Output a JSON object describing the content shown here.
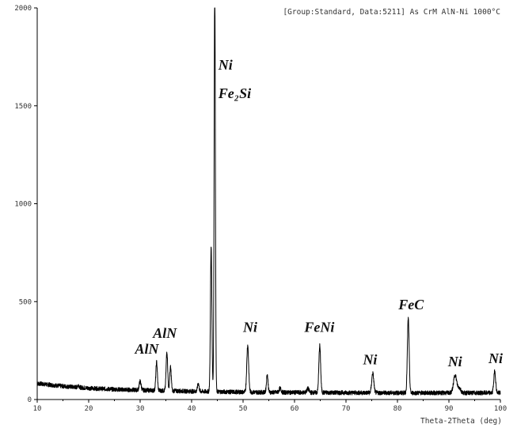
{
  "chart_data": {
    "type": "line",
    "header": "[Group:Standard, Data:5211] As CrM AlN-Ni 1000°C",
    "xlabel": "Theta-2Theta (deg)",
    "ylabel": "",
    "xlim": [
      10,
      100
    ],
    "ylim": [
      0,
      2000
    ],
    "xticks": [
      "10",
      "20",
      "30",
      "40",
      "50",
      "60",
      "70",
      "80",
      "90",
      "100"
    ],
    "yticks": [
      "0",
      "500",
      "1000",
      "1500",
      "2000"
    ],
    "grid": false,
    "legend": "none",
    "baseline": [
      {
        "x": 10,
        "y": 82
      },
      {
        "x": 15,
        "y": 68
      },
      {
        "x": 20,
        "y": 58
      },
      {
        "x": 25,
        "y": 52
      },
      {
        "x": 30,
        "y": 48
      },
      {
        "x": 35,
        "y": 45
      },
      {
        "x": 40,
        "y": 42
      },
      {
        "x": 45,
        "y": 40
      },
      {
        "x": 50,
        "y": 38
      },
      {
        "x": 60,
        "y": 36
      },
      {
        "x": 70,
        "y": 35
      },
      {
        "x": 80,
        "y": 34
      },
      {
        "x": 90,
        "y": 34
      },
      {
        "x": 100,
        "y": 34
      }
    ],
    "peaks": [
      {
        "x": 18.0,
        "height": 12,
        "width": 0.15
      },
      {
        "x": 30.0,
        "height": 45,
        "width": 0.18
      },
      {
        "x": 33.2,
        "height": 145,
        "width": 0.15
      },
      {
        "x": 35.2,
        "height": 200,
        "width": 0.15
      },
      {
        "x": 35.9,
        "height": 120,
        "width": 0.15
      },
      {
        "x": 41.3,
        "height": 40,
        "width": 0.15
      },
      {
        "x": 43.8,
        "height": 740,
        "width": 0.14
      },
      {
        "x": 44.5,
        "height": 2100,
        "width": 0.12
      },
      {
        "x": 50.9,
        "height": 240,
        "width": 0.18
      },
      {
        "x": 54.7,
        "height": 90,
        "width": 0.15
      },
      {
        "x": 57.2,
        "height": 20,
        "width": 0.2
      },
      {
        "x": 62.6,
        "height": 20,
        "width": 0.2
      },
      {
        "x": 64.9,
        "height": 240,
        "width": 0.17
      },
      {
        "x": 75.2,
        "height": 100,
        "width": 0.2
      },
      {
        "x": 82.1,
        "height": 380,
        "width": 0.17
      },
      {
        "x": 91.2,
        "height": 90,
        "width": 0.3
      },
      {
        "x": 92.0,
        "height": 25,
        "width": 0.3
      },
      {
        "x": 98.9,
        "height": 110,
        "width": 0.18
      }
    ],
    "annotations": [
      {
        "text": "AlN",
        "x": 29.0,
        "y": 235
      },
      {
        "text": "AlN",
        "x": 32.5,
        "y": 315
      },
      {
        "text": "Ni",
        "x": 45.2,
        "y": 1685
      },
      {
        "text": "Fe₂Si",
        "x": 45.2,
        "y": 1540
      },
      {
        "text": "Ni",
        "x": 50.0,
        "y": 345
      },
      {
        "text": "FeNi",
        "x": 61.9,
        "y": 345
      },
      {
        "text": "Ni",
        "x": 73.3,
        "y": 180
      },
      {
        "text": "FeC",
        "x": 80.2,
        "y": 460
      },
      {
        "text": "Ni",
        "x": 89.8,
        "y": 170
      },
      {
        "text": "Ni",
        "x": 97.7,
        "y": 185
      }
    ]
  }
}
